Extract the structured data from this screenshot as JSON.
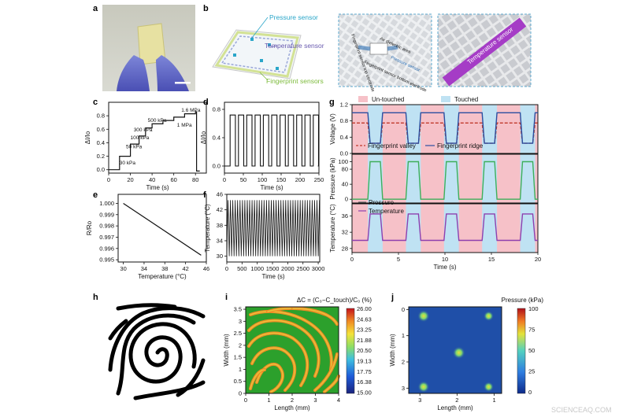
{
  "figure": {
    "panel_labels": [
      "a",
      "b",
      "c",
      "d",
      "e",
      "f",
      "g",
      "h",
      "i",
      "j"
    ],
    "watermark": "SCIENCEAQ.COM"
  },
  "panel_b": {
    "labels": {
      "pressure_sensor": "Pressure sensor",
      "temperature_sensor": "Temperature sensor",
      "fingerprint_sensors": "Fingerprint sensors",
      "temperature_sensor_inset": "Temperature sensor",
      "fp_top": "Fingerprint sensor top electrode",
      "dielectric": "Air dielectric area",
      "pressure_sensor_inset": "Pressure sensor",
      "fp_bottom": "Fingerprint sensor bottom electrode"
    },
    "colors": {
      "pressure": "#2aa6c9",
      "temperature": "#6a5bb0",
      "fingerprint": "#7dbb3c"
    }
  },
  "chart_data": [
    {
      "id": "c",
      "type": "line",
      "xlabel": "Time (s)",
      "ylabel": "ΔI/Io",
      "xlim": [
        0,
        90
      ],
      "ylim": [
        -0.05,
        1.0
      ],
      "xticks": [
        0,
        20,
        40,
        60,
        80
      ],
      "yticks": [
        0,
        0.2,
        0.4,
        0.6,
        0.8
      ],
      "x": [
        0,
        10,
        10,
        20,
        20,
        28,
        28,
        34,
        34,
        40,
        40,
        50,
        50,
        60,
        60,
        70,
        70,
        80,
        80,
        81,
        81,
        84
      ],
      "y": [
        0,
        0,
        0.2,
        0.2,
        0.38,
        0.38,
        0.5,
        0.5,
        0.62,
        0.62,
        0.68,
        0.68,
        0.73,
        0.73,
        0.78,
        0.78,
        0.83,
        0.83,
        0.86,
        0.86,
        -0.02,
        -0.02
      ],
      "annotations": [
        {
          "text": "30 kPa",
          "x": 10,
          "y": 0.08
        },
        {
          "text": "50 kPa",
          "x": 16,
          "y": 0.32
        },
        {
          "text": "100 kPa",
          "x": 20,
          "y": 0.45
        },
        {
          "text": "300 kPa",
          "x": 23,
          "y": 0.57
        },
        {
          "text": "500 kPa",
          "x": 36,
          "y": 0.71
        },
        {
          "text": "1 MPa",
          "x": 63,
          "y": 0.64
        },
        {
          "text": "1.6 MPa",
          "x": 67,
          "y": 0.86
        }
      ],
      "colors": {
        "line": "#111111",
        "annotation": "#c0392b"
      }
    },
    {
      "id": "d",
      "type": "line",
      "xlabel": "Time (s)",
      "ylabel": "ΔI/Io",
      "xlim": [
        0,
        250
      ],
      "ylim": [
        -0.1,
        0.9
      ],
      "xticks": [
        0,
        50,
        100,
        150,
        200,
        250
      ],
      "yticks": [
        0,
        0.4,
        0.8
      ],
      "pulses": {
        "start": 15,
        "period": 22,
        "width": 14,
        "count": 11,
        "high": 0.72,
        "low": 0.0,
        "end": 247
      }
    },
    {
      "id": "e",
      "type": "line",
      "xlabel": "Temperature (°C)",
      "ylabel": "R/Ro",
      "xlim": [
        29,
        46
      ],
      "ylim": [
        0.9948,
        1.0008
      ],
      "xticks": [
        30,
        34,
        38,
        42,
        46
      ],
      "yticks": [
        1.0,
        0.999,
        0.998,
        0.997,
        0.996,
        0.995
      ],
      "x": [
        30,
        45
      ],
      "y": [
        1.0,
        0.9954
      ]
    },
    {
      "id": "f",
      "type": "line",
      "xlabel": "Time (s)",
      "ylabel": "Temperature (°C)",
      "xlim": [
        0,
        3050
      ],
      "ylim": [
        28.5,
        46
      ],
      "xticks": [
        0,
        500,
        1000,
        1500,
        2000,
        2500,
        3000
      ],
      "yticks": [
        30,
        34,
        38,
        42,
        46
      ],
      "oscillation": {
        "min": 30,
        "max": 44.5,
        "cycles": 38
      }
    },
    {
      "id": "g",
      "type": "line",
      "xlabel": "Time (s)",
      "xlim": [
        0,
        20
      ],
      "xticks": [
        0,
        5,
        10,
        15,
        20
      ],
      "legend_top": {
        "untouched": "Un-touched",
        "touched": "Touched"
      },
      "bands": {
        "touched_intervals": [
          [
            1.7,
            3.3
          ],
          [
            5.8,
            7.4
          ],
          [
            9.9,
            11.5
          ],
          [
            14.0,
            15.6
          ],
          [
            18.1,
            19.7
          ]
        ]
      },
      "subplots": [
        {
          "ylabel": "Voltage (V)",
          "ylim": [
            0,
            1.2
          ],
          "yticks": [
            0.0,
            0.4,
            0.8,
            1.2
          ],
          "series": [
            {
              "name": "Fingerprint valley",
              "color": "#c0392b",
              "dashed": true,
              "high": 0.75,
              "low": 0.25
            },
            {
              "name": "Fingerprint ridge",
              "color": "#2b4ea0",
              "dashed": false,
              "high": 1.0,
              "low": 0.25
            }
          ]
        },
        {
          "ylabel": "Pressure (kPa)",
          "ylim": [
            -10,
            120
          ],
          "yticks": [
            0,
            40,
            80,
            100
          ],
          "series": [
            {
              "name": "Pressure",
              "color": "#3fae5a",
              "high": 100,
              "low": 0
            }
          ]
        },
        {
          "ylabel": "Temperature (°C)",
          "ylim": [
            27,
            39
          ],
          "yticks": [
            28,
            32,
            36
          ],
          "series": [
            {
              "name": "Temperature",
              "color": "#8e3fae",
              "high": 36.5,
              "low": 30
            }
          ]
        }
      ],
      "colors": {
        "touched": "#bfe2f3",
        "untouched": "#f6c1c8"
      }
    },
    {
      "id": "i",
      "type": "heatmap",
      "xlabel": "Length (mm)",
      "ylabel": "Width (mm)",
      "xticks": [
        0,
        1,
        2,
        3,
        4
      ],
      "yticks": [
        0,
        0.5,
        1,
        1.5,
        2,
        2.5,
        3,
        3.5
      ],
      "colorbar_title": "ΔC = (C₀−C_touch)/C₀ (%)",
      "colorbar_ticks": [
        "26.00",
        "24.63",
        "23.25",
        "21.88",
        "20.50",
        "19.13",
        "17.75",
        "16.38",
        "15.00"
      ],
      "colors": [
        "#2ca02c",
        "#e8c23a",
        "#f08a24"
      ]
    },
    {
      "id": "j",
      "type": "heatmap",
      "xlabel": "Length (mm)",
      "ylabel": "Width (mm)",
      "xticks": [
        3,
        2,
        1
      ],
      "yticks": [
        0,
        1,
        2,
        3
      ],
      "colorbar_title": "Pressure (kPa)",
      "colorbar_ticks": [
        "100",
        "75",
        "50",
        "25",
        "0"
      ],
      "background": "#1f4fa8",
      "points": [
        {
          "x": 2.9,
          "y": 0.25,
          "value": 55
        },
        {
          "x": 1.15,
          "y": 0.25,
          "value": 30
        },
        {
          "x": 1.95,
          "y": 1.65,
          "value": 60
        },
        {
          "x": 2.9,
          "y": 2.95,
          "value": 50
        },
        {
          "x": 1.15,
          "y": 2.95,
          "value": 30
        }
      ]
    }
  ]
}
